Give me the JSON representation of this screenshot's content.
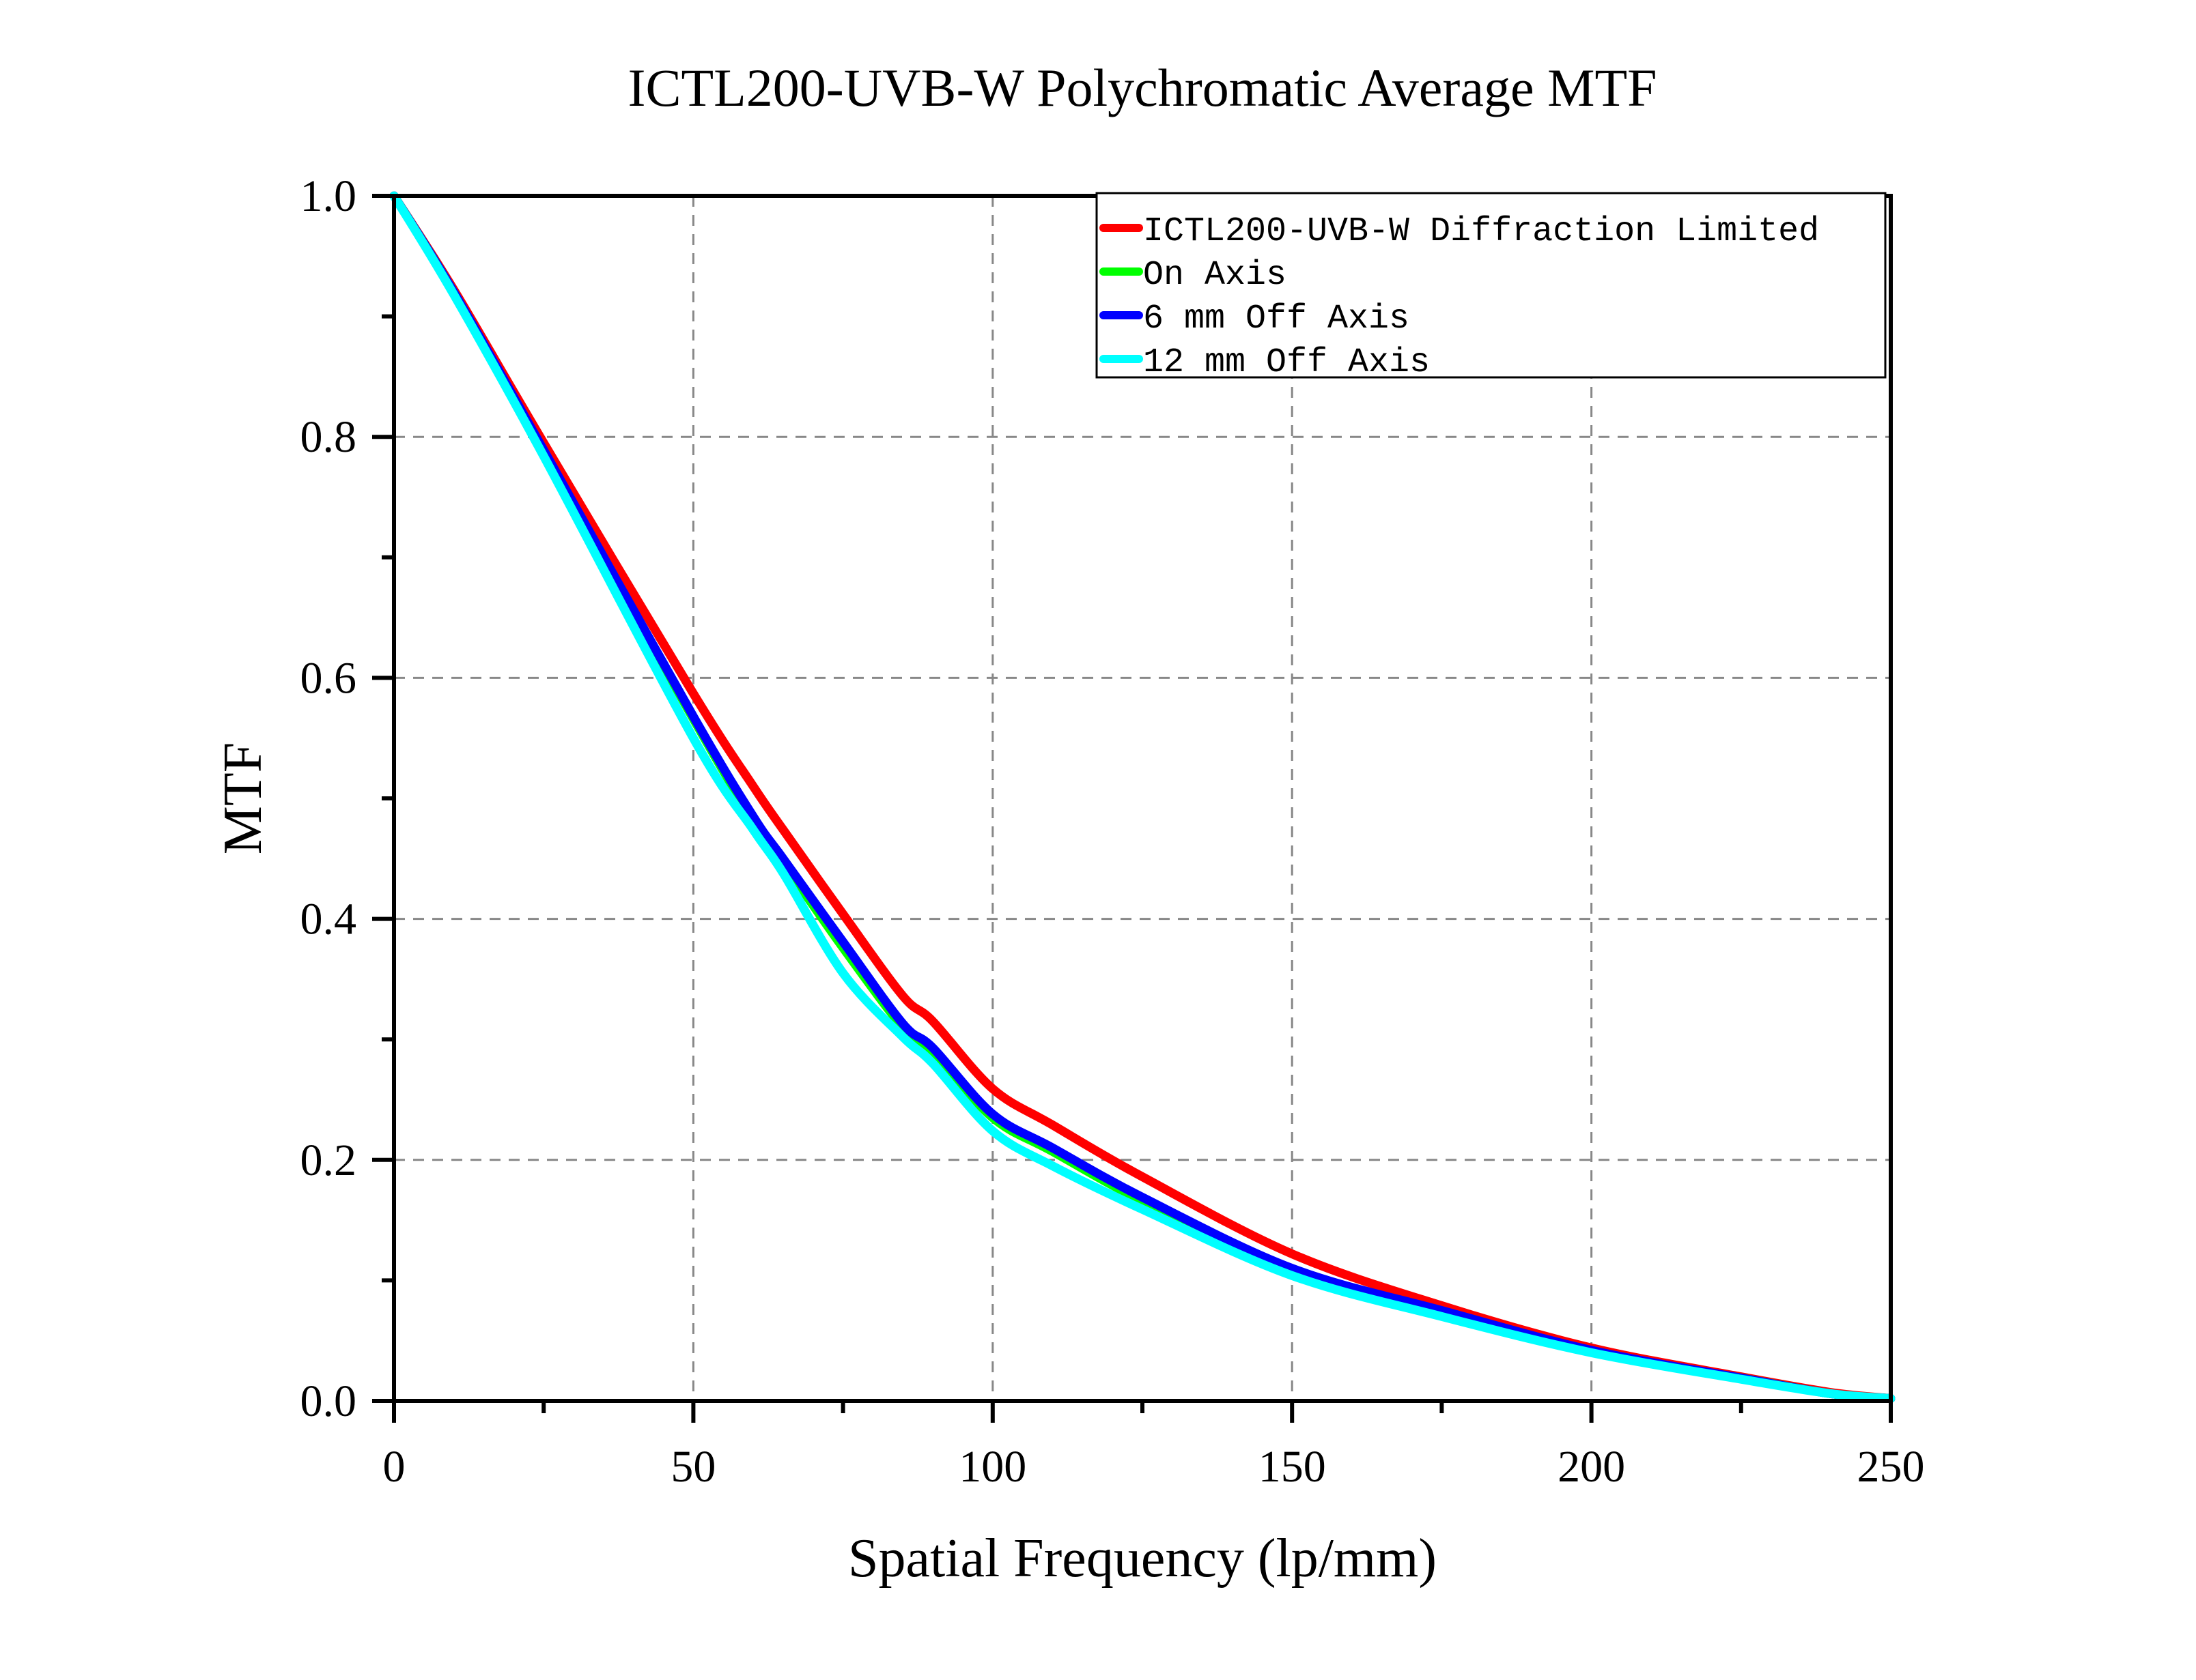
{
  "chart_data": {
    "type": "line",
    "title": "ICTL200-UVB-W Polychromatic Average MTF",
    "xlabel": "Spatial Frequency (lp/mm)",
    "ylabel": "MTF",
    "xlim": [
      0,
      250
    ],
    "ylim": [
      0,
      1.0
    ],
    "xticks": [
      0,
      50,
      100,
      150,
      200,
      250
    ],
    "xtick_labels": [
      "0",
      "50",
      "100",
      "150",
      "200",
      "250"
    ],
    "xminor": [
      25,
      75,
      125,
      175,
      225
    ],
    "yticks": [
      0.0,
      0.2,
      0.4,
      0.6,
      0.8,
      1.0
    ],
    "ytick_labels": [
      "0.0",
      "0.2",
      "0.4",
      "0.6",
      "0.8",
      "1.0"
    ],
    "yminor": [
      0.1,
      0.3,
      0.5,
      0.7,
      0.9
    ],
    "grid": true,
    "legend_position": "top-right",
    "x": [
      0,
      10,
      25,
      50,
      60,
      65,
      75,
      85,
      90,
      100,
      110,
      125,
      150,
      175,
      200,
      225,
      240,
      250
    ],
    "series": [
      {
        "name": "ICTL200-UVB-W Diffraction Limited",
        "color": "#ff0000",
        "values": [
          1.0,
          0.922,
          0.795,
          0.587,
          0.51,
          0.474,
          0.404,
          0.336,
          0.315,
          0.259,
          0.229,
          0.186,
          0.122,
          0.079,
          0.044,
          0.02,
          0.007,
          0.002
        ]
      },
      {
        "name": "On Axis",
        "color": "#00ff00",
        "values": [
          1.0,
          0.92,
          0.788,
          0.566,
          0.482,
          0.447,
          0.376,
          0.31,
          0.29,
          0.235,
          0.207,
          0.166,
          0.108,
          0.074,
          0.041,
          0.019,
          0.006,
          0.002
        ]
      },
      {
        "name": "6 mm Off Axis",
        "color": "#0000ff",
        "values": [
          1.0,
          0.92,
          0.789,
          0.568,
          0.485,
          0.45,
          0.381,
          0.313,
          0.293,
          0.238,
          0.21,
          0.169,
          0.11,
          0.075,
          0.042,
          0.019,
          0.006,
          0.002
        ]
      },
      {
        "name": "12 mm Off Axis",
        "color": "#00ffff",
        "values": [
          1.0,
          0.918,
          0.784,
          0.55,
          0.474,
          0.438,
          0.355,
          0.302,
          0.28,
          0.224,
          0.195,
          0.159,
          0.104,
          0.07,
          0.04,
          0.018,
          0.006,
          0.002
        ]
      }
    ]
  }
}
